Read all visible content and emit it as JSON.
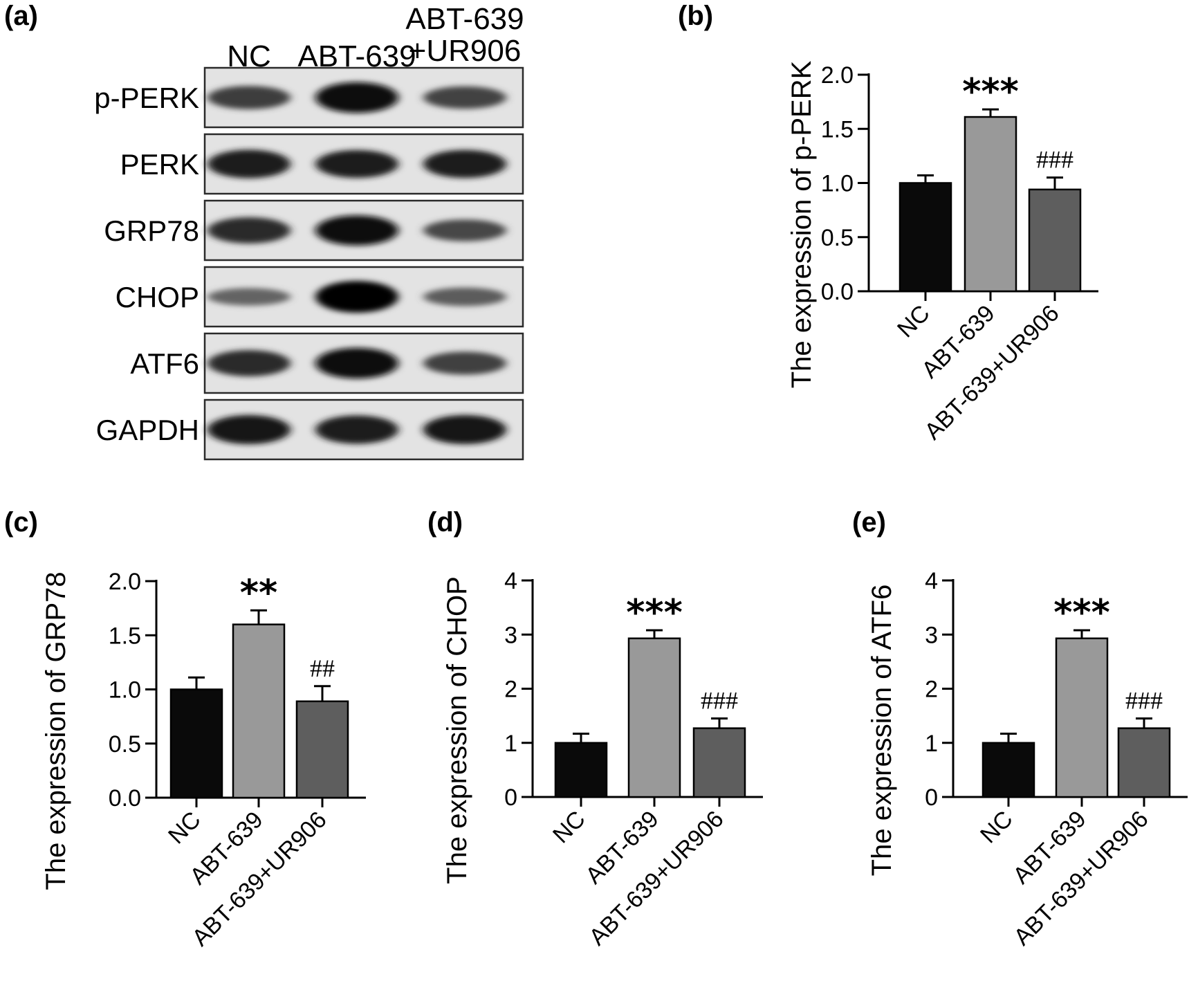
{
  "blot": {
    "panel_label": "(a)",
    "lanes": [
      {
        "lines": [
          "NC"
        ]
      },
      {
        "lines": [
          "ABT-639"
        ]
      },
      {
        "lines": [
          "ABT-639",
          "+UR906"
        ]
      }
    ],
    "rows": [
      {
        "label": "p-PERK",
        "intensities": [
          0.62,
          0.95,
          0.58
        ]
      },
      {
        "label": "PERK",
        "intensities": [
          0.85,
          0.82,
          0.83
        ]
      },
      {
        "label": "GRP78",
        "intensities": [
          0.75,
          0.92,
          0.55
        ]
      },
      {
        "label": "CHOP",
        "intensities": [
          0.35,
          1.0,
          0.4
        ]
      },
      {
        "label": "ATF6",
        "intensities": [
          0.75,
          0.95,
          0.6
        ]
      },
      {
        "label": "GAPDH",
        "intensities": [
          0.88,
          0.85,
          0.88
        ]
      }
    ]
  },
  "chart_data": [
    {
      "panel_label": "(b)",
      "type": "bar",
      "categories": [
        "NC",
        "ABT-639",
        "ABT-639+UR906"
      ],
      "values": [
        1.0,
        1.61,
        0.94
      ],
      "errors": [
        0.07,
        0.07,
        0.11
      ],
      "bar_colors": [
        "#0a0a0a",
        "#999999",
        "#5e5e5e"
      ],
      "annotations": [
        "",
        "***",
        "###"
      ],
      "title": "",
      "xlabel": "",
      "ylabel": "The expression of p-PERK",
      "ylim": [
        0,
        2.0
      ],
      "yticks": [
        0.0,
        0.5,
        1.0,
        1.5,
        2.0
      ],
      "ytick_labels": [
        "0.0",
        "0.5",
        "1.0",
        "1.5",
        "2.0"
      ],
      "grid": false,
      "legend": "none"
    },
    {
      "panel_label": "(c)",
      "type": "bar",
      "categories": [
        "NC",
        "ABT-639",
        "ABT-639+UR906"
      ],
      "values": [
        1.0,
        1.6,
        0.89
      ],
      "errors": [
        0.11,
        0.13,
        0.14
      ],
      "bar_colors": [
        "#0a0a0a",
        "#999999",
        "#5e5e5e"
      ],
      "annotations": [
        "",
        "**",
        "##"
      ],
      "title": "",
      "xlabel": "",
      "ylabel": "The expression of GRP78",
      "ylim": [
        0,
        2.0
      ],
      "yticks": [
        0.0,
        0.5,
        1.0,
        1.5,
        2.0
      ],
      "ytick_labels": [
        "0.0",
        "0.5",
        "1.0",
        "1.5",
        "2.0"
      ],
      "grid": false,
      "legend": "none"
    },
    {
      "panel_label": "(d)",
      "type": "bar",
      "categories": [
        "NC",
        "ABT-639",
        "ABT-639+UR906"
      ],
      "values": [
        1.0,
        2.93,
        1.27
      ],
      "errors": [
        0.17,
        0.15,
        0.18
      ],
      "bar_colors": [
        "#0a0a0a",
        "#999999",
        "#5e5e5e"
      ],
      "annotations": [
        "",
        "***",
        "###"
      ],
      "title": "",
      "xlabel": "",
      "ylabel": "The expression of CHOP",
      "ylim": [
        0,
        4
      ],
      "yticks": [
        0,
        1,
        2,
        3,
        4
      ],
      "ytick_labels": [
        "0",
        "1",
        "2",
        "3",
        "4"
      ],
      "grid": false,
      "legend": "none"
    },
    {
      "panel_label": "(e)",
      "type": "bar",
      "categories": [
        "NC",
        "ABT-639",
        "ABT-639+UR906"
      ],
      "values": [
        1.0,
        2.93,
        1.27
      ],
      "errors": [
        0.17,
        0.15,
        0.18
      ],
      "bar_colors": [
        "#0a0a0a",
        "#999999",
        "#5e5e5e"
      ],
      "annotations": [
        "",
        "***",
        "###"
      ],
      "title": "",
      "xlabel": "",
      "ylabel": "The expression of ATF6",
      "ylim": [
        0,
        4
      ],
      "yticks": [
        0,
        1,
        2,
        3,
        4
      ],
      "ytick_labels": [
        "0",
        "1",
        "2",
        "3",
        "4"
      ],
      "grid": false,
      "legend": "none"
    }
  ]
}
